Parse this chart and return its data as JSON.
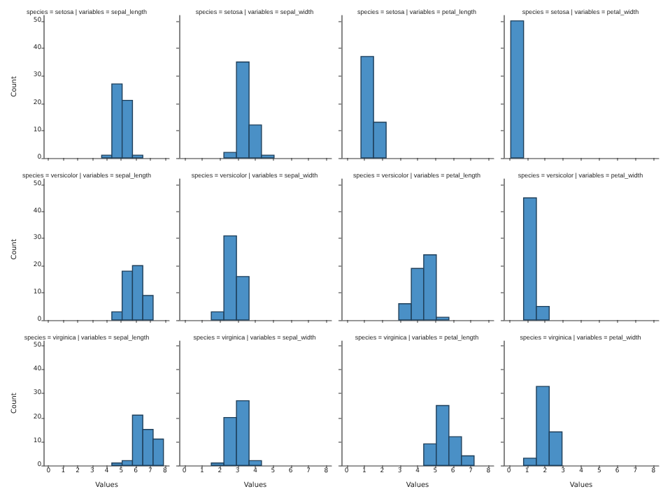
{
  "chart_data": [
    {
      "type": "histogram",
      "title": "species = setosa | variables = sepal_length",
      "ylabel": "Count",
      "bins": [
        3.65,
        4.35,
        5.06,
        5.77,
        6.48
      ],
      "values": [
        1,
        27,
        21,
        1
      ],
      "color": "#4a90c6",
      "xlim": [
        -0.3,
        8.3
      ],
      "ylim": [
        0,
        52
      ],
      "xticks": [
        0,
        1,
        2,
        3,
        4,
        5,
        6,
        7,
        8
      ],
      "yticks": [
        0,
        10,
        20,
        30,
        40,
        50
      ],
      "tick_labels": "y"
    },
    {
      "type": "histogram",
      "title": "species = setosa | variables = sepal_width",
      "bins": [
        2.23,
        2.94,
        3.65,
        4.35,
        5.06
      ],
      "values": [
        2,
        35,
        12,
        1
      ],
      "color": "#4a90c6",
      "xlim": [
        -0.3,
        8.3
      ],
      "ylim": [
        0,
        52
      ],
      "xticks": [
        0,
        1,
        2,
        3,
        4,
        5,
        6,
        7,
        8
      ],
      "yticks": [
        0,
        10,
        20,
        30,
        40,
        50
      ],
      "tick_labels": false
    },
    {
      "type": "histogram",
      "title": "species = setosa | variables = petal_length",
      "bins": [
        0.81,
        1.52,
        2.23
      ],
      "values": [
        37,
        13
      ],
      "color": "#4a90c6",
      "xlim": [
        -0.3,
        8.3
      ],
      "ylim": [
        0,
        52
      ],
      "xticks": [
        0,
        1,
        2,
        3,
        4,
        5,
        6,
        7,
        8
      ],
      "yticks": [
        0,
        10,
        20,
        30,
        40,
        50
      ],
      "tick_labels": false
    },
    {
      "type": "histogram",
      "title": "species = setosa | variables = petal_width",
      "bins": [
        0.1,
        0.81
      ],
      "values": [
        50
      ],
      "color": "#4a90c6",
      "xlim": [
        -0.3,
        8.3
      ],
      "ylim": [
        0,
        52
      ],
      "xticks": [
        0,
        1,
        2,
        3,
        4,
        5,
        6,
        7,
        8
      ],
      "yticks": [
        0,
        10,
        20,
        30,
        40,
        50
      ],
      "tick_labels": false
    },
    {
      "type": "histogram",
      "title": "species = versicolor | variables = sepal_length",
      "ylabel": "Count",
      "bins": [
        4.35,
        5.06,
        5.77,
        6.48,
        7.19
      ],
      "values": [
        3,
        18,
        20,
        9
      ],
      "color": "#4a90c6",
      "xlim": [
        -0.3,
        8.3
      ],
      "ylim": [
        0,
        52
      ],
      "xticks": [
        0,
        1,
        2,
        3,
        4,
        5,
        6,
        7,
        8
      ],
      "yticks": [
        0,
        10,
        20,
        30,
        40,
        50
      ],
      "tick_labels": "y"
    },
    {
      "type": "histogram",
      "title": "species = versicolor | variables = sepal_width",
      "bins": [
        1.52,
        2.23,
        2.94,
        3.65
      ],
      "values": [
        3,
        31,
        16
      ],
      "color": "#4a90c6",
      "xlim": [
        -0.3,
        8.3
      ],
      "ylim": [
        0,
        52
      ],
      "xticks": [
        0,
        1,
        2,
        3,
        4,
        5,
        6,
        7,
        8
      ],
      "yticks": [
        0,
        10,
        20,
        30,
        40,
        50
      ],
      "tick_labels": false
    },
    {
      "type": "histogram",
      "title": "species = versicolor | variables = petal_length",
      "bins": [
        2.94,
        3.65,
        4.35,
        5.06,
        5.77
      ],
      "values": [
        6,
        19,
        24,
        1
      ],
      "color": "#4a90c6",
      "xlim": [
        -0.3,
        8.3
      ],
      "ylim": [
        0,
        52
      ],
      "xticks": [
        0,
        1,
        2,
        3,
        4,
        5,
        6,
        7,
        8
      ],
      "yticks": [
        0,
        10,
        20,
        30,
        40,
        50
      ],
      "tick_labels": false
    },
    {
      "type": "histogram",
      "title": "species = versicolor | variables = petal_width",
      "bins": [
        0.81,
        1.52,
        2.23
      ],
      "values": [
        45,
        5
      ],
      "color": "#4a90c6",
      "xlim": [
        -0.3,
        8.3
      ],
      "ylim": [
        0,
        52
      ],
      "xticks": [
        0,
        1,
        2,
        3,
        4,
        5,
        6,
        7,
        8
      ],
      "yticks": [
        0,
        10,
        20,
        30,
        40,
        50
      ],
      "tick_labels": false
    },
    {
      "type": "histogram",
      "title": "species = virginica | variables = sepal_length",
      "xlabel": "Values",
      "ylabel": "Count",
      "bins": [
        4.35,
        5.06,
        5.77,
        6.48,
        7.19,
        7.9
      ],
      "values": [
        1,
        2,
        21,
        15,
        11
      ],
      "color": "#4a90c6",
      "xlim": [
        -0.3,
        8.3
      ],
      "ylim": [
        0,
        52
      ],
      "xticks": [
        0,
        1,
        2,
        3,
        4,
        5,
        6,
        7,
        8
      ],
      "yticks": [
        0,
        10,
        20,
        30,
        40,
        50
      ]
    },
    {
      "type": "histogram",
      "title": "species = virginica | variables = sepal_width",
      "xlabel": "Values",
      "bins": [
        1.52,
        2.23,
        2.94,
        3.65,
        4.35
      ],
      "values": [
        1,
        20,
        27,
        2
      ],
      "color": "#4a90c6",
      "xlim": [
        -0.3,
        8.3
      ],
      "ylim": [
        0,
        52
      ],
      "xticks": [
        0,
        1,
        2,
        3,
        4,
        5,
        6,
        7,
        8
      ],
      "yticks": [
        0,
        10,
        20,
        30,
        40,
        50
      ],
      "tick_labels": "x"
    },
    {
      "type": "histogram",
      "title": "species = virginica | variables = petal_length",
      "xlabel": "Values",
      "bins": [
        4.35,
        5.06,
        5.77,
        6.48,
        7.19
      ],
      "values": [
        9,
        25,
        12,
        4
      ],
      "color": "#4a90c6",
      "xlim": [
        -0.3,
        8.3
      ],
      "ylim": [
        0,
        52
      ],
      "xticks": [
        0,
        1,
        2,
        3,
        4,
        5,
        6,
        7,
        8
      ],
      "yticks": [
        0,
        10,
        20,
        30,
        40,
        50
      ],
      "tick_labels": "x"
    },
    {
      "type": "histogram",
      "title": "species = virginica | variables = petal_width",
      "xlabel": "Values",
      "bins": [
        0.81,
        1.52,
        2.23,
        2.94
      ],
      "values": [
        3,
        33,
        14
      ],
      "color": "#4a90c6",
      "xlim": [
        -0.3,
        8.3
      ],
      "ylim": [
        0,
        52
      ],
      "xticks": [
        0,
        1,
        2,
        3,
        4,
        5,
        6,
        7,
        8
      ],
      "yticks": [
        0,
        10,
        20,
        30,
        40,
        50
      ],
      "tick_labels": "x"
    }
  ]
}
